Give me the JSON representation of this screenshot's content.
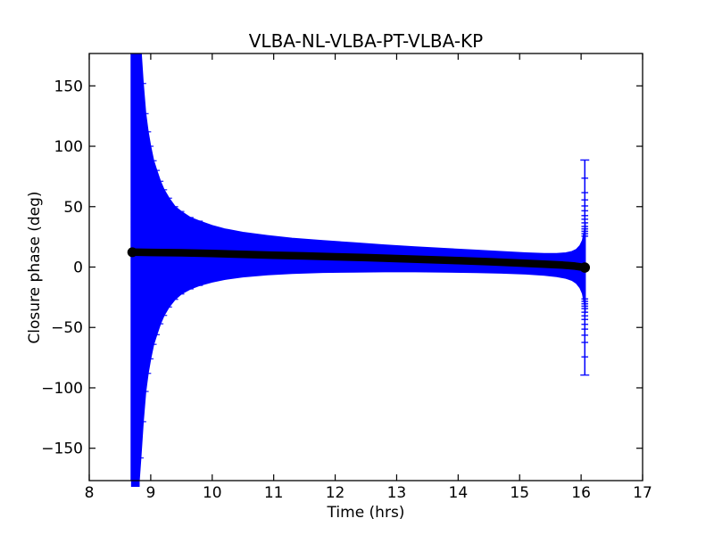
{
  "chart_data": {
    "type": "line",
    "title": "VLBA-NL-VLBA-PT-VLBA-KP",
    "xlabel": "Time (hrs)",
    "ylabel": "Closure phase (deg)",
    "xlim": [
      8,
      17
    ],
    "ylim": [
      -176.8,
      176.8
    ],
    "xticks": [
      8,
      9,
      10,
      11,
      12,
      13,
      14,
      15,
      16,
      17
    ],
    "yticks": [
      -150,
      -100,
      -50,
      0,
      50,
      100,
      150
    ],
    "grid": false,
    "legend": "none",
    "tick_direction": "in",
    "colors": {
      "points": "#000000",
      "errorbars": "#0000ff",
      "background": "#ffffff",
      "frame": "#000000"
    },
    "series": [
      {
        "name": "closure_phase_points",
        "style": "thick-marker-chain",
        "color": "#000000",
        "x": [
          8.7,
          9.0,
          9.5,
          10.0,
          10.5,
          11.0,
          11.5,
          12.0,
          12.5,
          13.0,
          13.5,
          14.0,
          14.5,
          15.0,
          15.4,
          15.7,
          15.9,
          16.06
        ],
        "y": [
          12.3,
          12.1,
          11.8,
          11.2,
          10.5,
          9.8,
          9.2,
          8.5,
          7.8,
          7.0,
          6.2,
          5.3,
          4.4,
          3.3,
          2.4,
          1.6,
          0.8,
          -0.4
        ]
      },
      {
        "name": "error_envelope",
        "style": "dense-errorbar-band",
        "color": "#0000ff",
        "t": [
          8.68,
          8.8,
          8.84,
          8.88,
          8.92,
          8.96,
          9.0,
          9.05,
          9.1,
          9.16,
          9.22,
          9.3,
          9.4,
          9.5,
          9.65,
          9.8,
          10.0,
          10.2,
          10.5,
          10.9,
          11.3,
          11.8,
          12.3,
          12.8,
          13.3,
          13.8,
          14.3,
          14.7,
          15.1,
          15.4,
          15.6,
          15.75,
          15.85,
          15.92,
          15.98,
          16.02,
          16.05,
          16.07
        ],
        "upper": [
          212,
          212,
          182,
          152,
          127,
          112,
          100,
          88,
          80,
          71,
          64,
          57,
          50,
          46,
          41,
          38,
          34.5,
          31.7,
          28.8,
          26.1,
          23.9,
          21.9,
          20.2,
          18.4,
          16.8,
          15.4,
          14,
          12.9,
          11.8,
          11.2,
          11.3,
          11.8,
          12.9,
          14.6,
          17.9,
          22.1,
          29.9,
          37.6
        ],
        "lower": [
          -188,
          -187,
          -158,
          -128,
          -103,
          -88,
          -76,
          -64,
          -56,
          -47,
          -40,
          -33.1,
          -26.7,
          -22.3,
          -18.1,
          -15.2,
          -12.5,
          -10.3,
          -8.2,
          -6.5,
          -5.3,
          -4.5,
          -4.2,
          -4.0,
          -4.0,
          -4.2,
          -4.6,
          -5.1,
          -5.8,
          -6.8,
          -7.9,
          -9.3,
          -11.1,
          -13.4,
          -17.2,
          -21.9,
          -30.1,
          -38.4
        ]
      }
    ],
    "end_errorbar": {
      "t": 16.06,
      "center": -0.4,
      "extent": 89,
      "cap_offsets": [
        26,
        28,
        30,
        32,
        34,
        37,
        40,
        43,
        47,
        51,
        56,
        62,
        74,
        89
      ]
    },
    "left_cap_t_range": [
      8.83,
      9.85
    ],
    "underflow_strip": {
      "t_start": 8.68,
      "t_end": 8.82
    }
  }
}
